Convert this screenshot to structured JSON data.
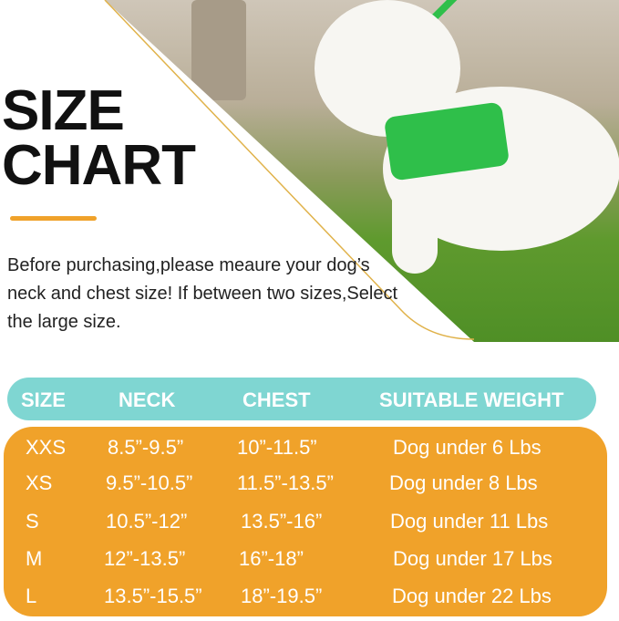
{
  "title": {
    "line1": "SIZE",
    "line2": "CHART"
  },
  "intro": "Before purchasing,please meaure your dog’s neck and chest size! If between two sizes,Select the large size.",
  "colors": {
    "header": "#7fd6d2",
    "body": "#f0a22a",
    "accent": "#f0a22a",
    "harness": "#2fbf4a"
  },
  "table": {
    "headers": [
      "SIZE",
      "NECK",
      "CHEST",
      "SUITABLE WEIGHT"
    ],
    "rows": [
      [
        "XXS",
        "8.5”-9.5”",
        "10”-11.5”",
        "Dog under 6 Lbs"
      ],
      [
        "XS",
        "9.5”-10.5”",
        "11.5”-13.5”",
        "Dog under 8 Lbs"
      ],
      [
        "S",
        "10.5”-12”",
        "13.5”-16”",
        "Dog under 11 Lbs"
      ],
      [
        "M",
        "12”-13.5”",
        "16”-18”",
        "Dog under 17 Lbs"
      ],
      [
        "L",
        "13.5”-15.5”",
        "18”-19.5”",
        "Dog under 22 Lbs"
      ]
    ]
  }
}
